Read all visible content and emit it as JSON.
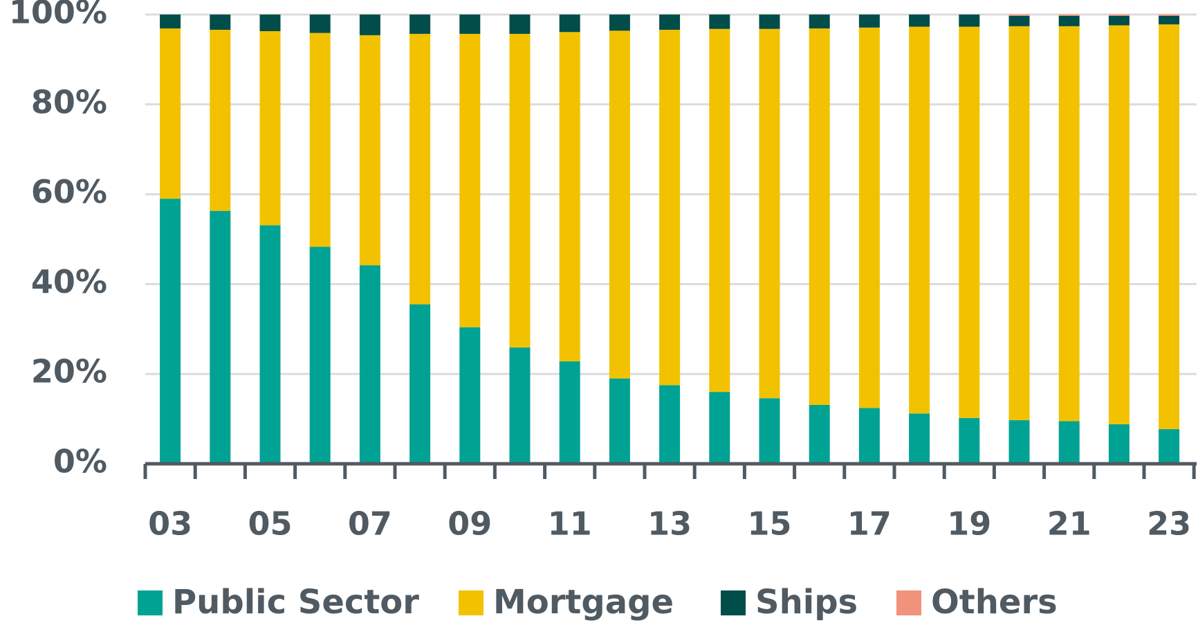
{
  "chart_data": {
    "type": "bar",
    "stacked": true,
    "categories": [
      "03",
      null,
      "05",
      null,
      "07",
      null,
      "09",
      null,
      "11",
      null,
      "13",
      null,
      "15",
      null,
      "17",
      null,
      "19",
      null,
      "21",
      null,
      "23"
    ],
    "series": [
      {
        "name": "Public Sector",
        "color": "#00a294",
        "values": [
          59.0,
          56.3,
          53.1,
          48.3,
          44.2,
          35.5,
          30.4,
          25.9,
          22.8,
          19.0,
          17.5,
          16.0,
          14.6,
          13.1,
          12.4,
          11.2,
          10.2,
          9.7,
          9.5,
          8.8,
          7.7
        ]
      },
      {
        "name": "Mortgage",
        "color": "#f2c200",
        "values": [
          37.9,
          40.3,
          43.2,
          47.6,
          51.2,
          60.2,
          65.3,
          69.8,
          73.3,
          77.4,
          79.1,
          80.8,
          82.2,
          83.8,
          84.7,
          86.1,
          87.1,
          87.7,
          87.9,
          88.8,
          90.1
        ]
      },
      {
        "name": "Ships",
        "color": "#004d4a",
        "values": [
          3.1,
          3.4,
          3.7,
          4.1,
          4.6,
          4.3,
          4.3,
          4.3,
          3.9,
          3.6,
          3.4,
          3.2,
          3.2,
          3.1,
          2.9,
          2.7,
          2.7,
          2.3,
          2.3,
          2.1,
          1.9
        ]
      },
      {
        "name": "Others",
        "color": "#f0927c",
        "values": [
          0,
          0,
          0,
          0,
          0,
          0,
          0,
          0,
          0,
          0,
          0,
          0,
          0,
          0,
          0,
          0,
          0,
          0.3,
          0.3,
          0.3,
          0.3
        ]
      }
    ],
    "ylim": [
      0,
      100
    ],
    "yticks": [
      {
        "value": 0,
        "label": "0%"
      },
      {
        "value": 20,
        "label": "20%"
      },
      {
        "value": 40,
        "label": "40%"
      },
      {
        "value": 60,
        "label": "60%"
      },
      {
        "value": 80,
        "label": "80%"
      },
      {
        "value": 100,
        "label": "100%"
      }
    ],
    "grid": true,
    "legend": "bottom"
  }
}
